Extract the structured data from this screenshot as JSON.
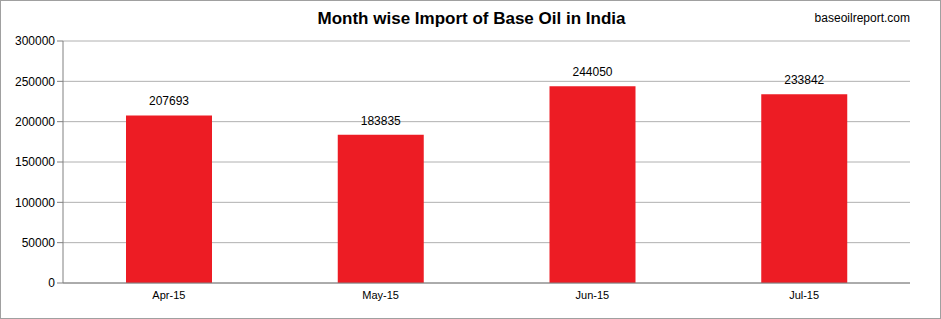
{
  "chart_data": {
    "type": "bar",
    "title": "Month wise Import of Base Oil in India",
    "annotations": [
      "baseoilreport.com"
    ],
    "categories": [
      "Apr-15",
      "May-15",
      "Jun-15",
      "Jul-15"
    ],
    "values": [
      207693,
      183835,
      244050,
      233842
    ],
    "color": "#ed1c24",
    "ylim": [
      0,
      300000
    ],
    "yticks": [
      0,
      50000,
      100000,
      150000,
      200000,
      250000,
      300000
    ],
    "grid": true,
    "data_labels": true
  }
}
